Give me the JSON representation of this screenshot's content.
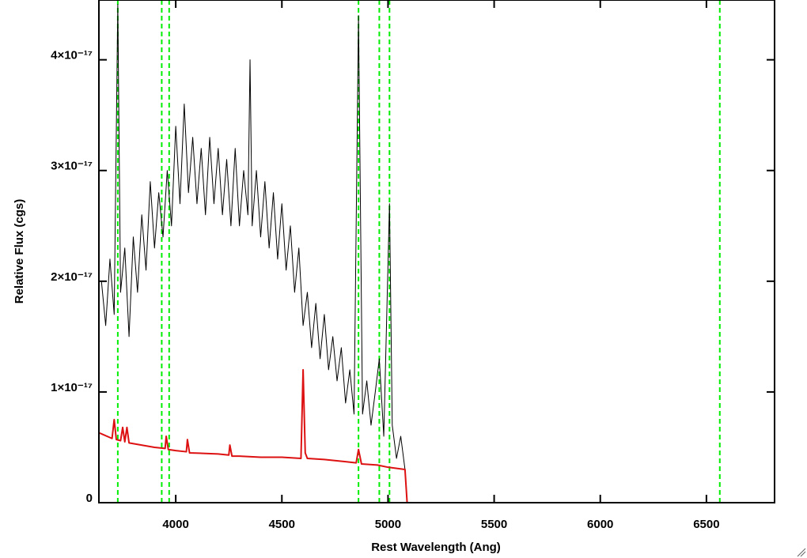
{
  "chart_data": {
    "type": "line",
    "xlabel": "Rest Wavelength (Ang)",
    "ylabel": "Relative Flux (cgs)",
    "xlim": [
      3638,
      6821
    ],
    "ylim": [
      0,
      4.54e-17
    ],
    "xticks": [
      4000,
      4500,
      5000,
      5500,
      6000,
      6500
    ],
    "yticks": [
      0,
      {
        "value": 1e-17,
        "label": "1×10⁻¹⁷"
      },
      {
        "value": 2e-17,
        "label": "2×10⁻¹⁷"
      },
      {
        "value": 3e-17,
        "label": "3×10⁻¹⁷"
      },
      {
        "value": 4e-17,
        "label": "4×10⁻¹⁷"
      }
    ],
    "series": [
      {
        "color": "#000000",
        "x": [
          3650,
          3670,
          3690,
          3710,
          3727,
          3740,
          3760,
          3780,
          3800,
          3820,
          3840,
          3860,
          3880,
          3900,
          3920,
          3940,
          3960,
          3980,
          4000,
          4020,
          4040,
          4060,
          4080,
          4100,
          4120,
          4140,
          4160,
          4180,
          4200,
          4220,
          4240,
          4260,
          4280,
          4300,
          4320,
          4340,
          4350,
          4360,
          4380,
          4400,
          4420,
          4440,
          4460,
          4480,
          4500,
          4520,
          4540,
          4560,
          4580,
          4600,
          4620,
          4640,
          4660,
          4680,
          4700,
          4720,
          4740,
          4760,
          4780,
          4800,
          4820,
          4840,
          4861,
          4880,
          4900,
          4920,
          4940,
          4959,
          4980,
          5007,
          5020,
          5040,
          5060,
          5080,
          5090,
          5100,
          6821
        ],
        "values": [
          2e-17,
          1.6e-17,
          2.2e-17,
          1.7e-17,
          4.5e-17,
          1.9e-17,
          2.3e-17,
          1.5e-17,
          2.4e-17,
          1.9e-17,
          2.6e-17,
          2.1e-17,
          2.9e-17,
          2.3e-17,
          2.8e-17,
          2.4e-17,
          3e-17,
          2.5e-17,
          3.4e-17,
          2.7e-17,
          3.6e-17,
          2.8e-17,
          3.3e-17,
          2.7e-17,
          3.2e-17,
          2.6e-17,
          3.3e-17,
          2.7e-17,
          3.2e-17,
          2.6e-17,
          3.1e-17,
          2.5e-17,
          3.2e-17,
          2.5e-17,
          3e-17,
          2.6e-17,
          4e-17,
          2.5e-17,
          3e-17,
          2.4e-17,
          2.9e-17,
          2.3e-17,
          2.8e-17,
          2.2e-17,
          2.7e-17,
          2.1e-17,
          2.5e-17,
          1.9e-17,
          2.3e-17,
          1.6e-17,
          1.9e-17,
          1.4e-17,
          1.8e-17,
          1.3e-17,
          1.7e-17,
          1.2e-17,
          1.5e-17,
          1.1e-17,
          1.4e-17,
          9e-18,
          1.2e-17,
          8e-18,
          4.4e-17,
          8e-18,
          1.1e-17,
          7e-18,
          1e-17,
          1.3e-17,
          6e-18,
          2.7e-17,
          7e-18,
          4e-18,
          6e-18,
          3e-18,
          0,
          0,
          0
        ]
      },
      {
        "color": "#dd1111",
        "x": [
          3640,
          3700,
          3710,
          3720,
          3740,
          3750,
          3760,
          3770,
          3780,
          3900,
          3950,
          3955,
          3965,
          4000,
          4050,
          4055,
          4065,
          4200,
          4250,
          4255,
          4265,
          4300,
          4400,
          4500,
          4590,
          4600,
          4610,
          4620,
          4700,
          4800,
          4850,
          4861,
          4875,
          4950,
          5000,
          5080,
          5090,
          6821
        ],
        "values": [
          6.3e-18,
          5.8e-18,
          7.5e-18,
          5.7e-18,
          5.6e-18,
          6.8e-18,
          5.5e-18,
          6.8e-18,
          5.4e-18,
          5e-18,
          4.9e-18,
          6e-18,
          4.8e-18,
          4.7e-18,
          4.6e-18,
          5.7e-18,
          4.5e-18,
          4.4e-18,
          4.3e-18,
          5.2e-18,
          4.2e-18,
          4.2e-18,
          4.1e-18,
          4.1e-18,
          4e-18,
          1.2e-17,
          4.5e-18,
          4e-18,
          3.9e-18,
          3.7e-18,
          3.6e-18,
          4.8e-18,
          3.5e-18,
          3.4e-18,
          3.2e-18,
          3e-18,
          0,
          0
        ]
      }
    ],
    "vlines": {
      "values": [
        3727,
        3934,
        3969,
        4861,
        4959,
        5007,
        6563
      ],
      "color": "#00ee00",
      "dashed": true
    }
  }
}
